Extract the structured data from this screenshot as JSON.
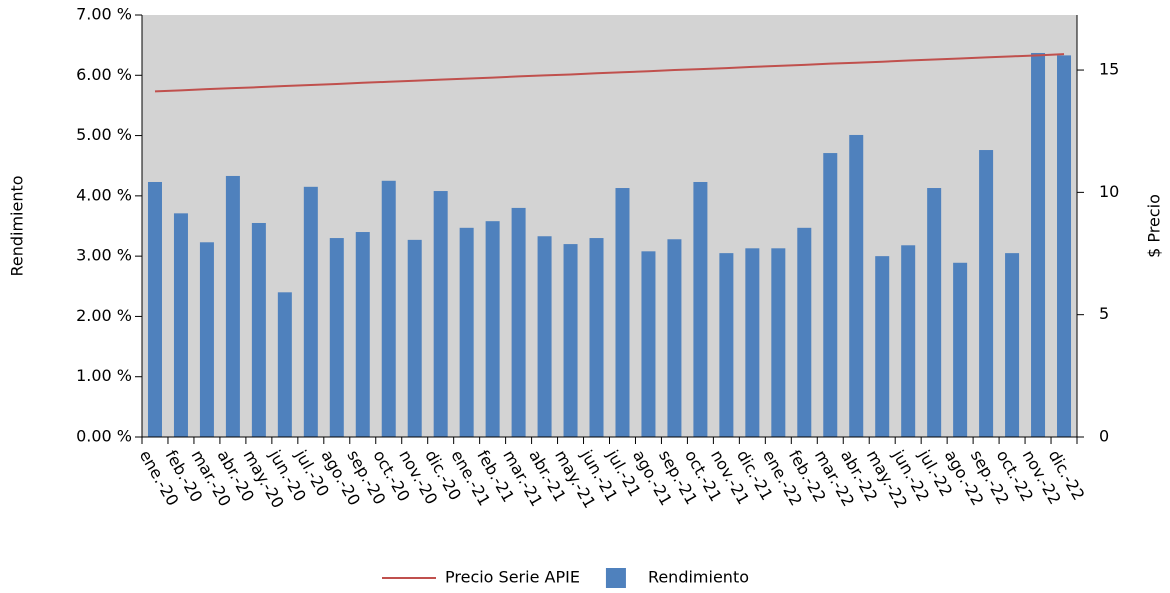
{
  "chart_data": {
    "type": "bar",
    "y_label": "Rendimiento",
    "y2_label": "$ Precio",
    "categories": [
      "ene.-20",
      "feb.-20",
      "mar.-20",
      "abr.-20",
      "may.-20",
      "jun.-20",
      "jul.-20",
      "ago.-20",
      "sep.-20",
      "oct.-20",
      "nov.-20",
      "dic.-20",
      "ene.-21",
      "feb.-21",
      "mar.-21",
      "abr.-21",
      "may.-21",
      "jun.-21",
      "jul.-21",
      "ago.-21",
      "sep.-21",
      "oct.-21",
      "nov.-21",
      "dic.-21",
      "ene.-22",
      "feb.-22",
      "mar.-22",
      "abr.-22",
      "may.-22",
      "jun.-22",
      "jul.-22",
      "ago.-22",
      "sep.-22",
      "oct.-22",
      "nov.-22",
      "dic.-22"
    ],
    "series": [
      {
        "name": "Precio Serie APIE",
        "type": "line",
        "axis": "y2",
        "color": "#c0504d",
        "values": [
          14.13,
          14.17,
          14.22,
          14.26,
          14.3,
          14.35,
          14.39,
          14.43,
          14.48,
          14.52,
          14.56,
          14.61,
          14.65,
          14.69,
          14.74,
          14.78,
          14.82,
          14.87,
          14.91,
          14.95,
          15.0,
          15.04,
          15.08,
          15.13,
          15.17,
          15.21,
          15.26,
          15.3,
          15.34,
          15.39,
          15.43,
          15.47,
          15.52,
          15.56,
          15.6,
          15.65
        ]
      },
      {
        "name": "Rendimiento",
        "type": "bar",
        "color": "#4f81bd",
        "values": [
          4.23,
          3.71,
          3.23,
          4.33,
          3.55,
          2.4,
          4.15,
          3.3,
          3.4,
          4.25,
          3.27,
          4.08,
          3.47,
          3.58,
          3.8,
          3.33,
          3.2,
          3.3,
          4.13,
          3.08,
          3.28,
          4.23,
          3.05,
          3.13,
          3.13,
          3.47,
          4.71,
          5.01,
          3.0,
          3.18,
          4.13,
          2.89,
          4.76,
          3.05,
          6.37,
          6.33
        ]
      }
    ],
    "ylim": [
      0,
      7
    ],
    "yticks": [
      {
        "value": 0,
        "label": "0.00 %"
      },
      {
        "value": 1,
        "label": "1.00 %"
      },
      {
        "value": 2,
        "label": "2.00 %"
      },
      {
        "value": 3,
        "label": "3.00 %"
      },
      {
        "value": 4,
        "label": "4.00 %"
      },
      {
        "value": 5,
        "label": "5.00 %"
      },
      {
        "value": 6,
        "label": "6.00 %"
      },
      {
        "value": 7,
        "label": "7.00 %"
      }
    ],
    "y2lim": [
      0,
      17.25
    ],
    "y2ticks": [
      0,
      5,
      10,
      15
    ],
    "plot_background": "#d3d3d3",
    "legend": "bottom"
  }
}
